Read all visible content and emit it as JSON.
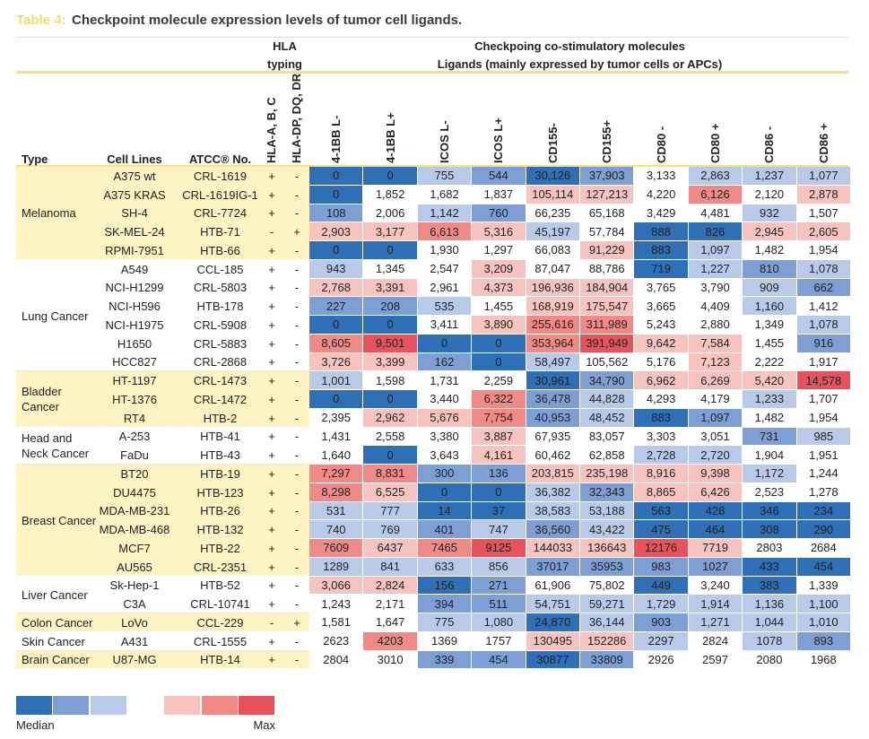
{
  "title": {
    "label": "Table 4:",
    "text": "Checkpoint molecule expression levels of tumor cell ligands."
  },
  "header": {
    "hla": [
      "HLA",
      "typing"
    ],
    "molecules": [
      "Checkpoing co-stimulatory molecules",
      "Ligands (mainly expressed by tumor cells or APCs)"
    ],
    "columns": [
      "Type",
      "Cell Lines",
      "ATCC® No.",
      "HLA-A, B, C",
      "HLA-DP, DQ, DR",
      "4-1BB L-",
      "4-1BB L+",
      "ICOS L-",
      "ICOS L+",
      "CD155-",
      "CD155+",
      "CD80 -",
      "CD80 +",
      "CD86 -",
      "CD86 +"
    ]
  },
  "groups": [
    {
      "type": "Melanoma",
      "rows": [
        {
          "line": "A375 wt",
          "atcc": "CRL-1619",
          "hla": [
            "+",
            "-"
          ],
          "values": [
            "0",
            "0",
            "755",
            "544",
            "30,126",
            "37,903",
            "3,133",
            "2,863",
            "1,237",
            "1,077"
          ],
          "levels": [
            0,
            0,
            2,
            1,
            0,
            1,
            3,
            2,
            2,
            2
          ]
        },
        {
          "line": "A375 KRAS",
          "atcc": "CRL-1619IG-1",
          "hla": [
            "+",
            "-"
          ],
          "values": [
            "0",
            "1,852",
            "1,682",
            "1,837",
            "105,114",
            "127,213",
            "4,220",
            "6,126",
            "2,120",
            "2,878"
          ],
          "levels": [
            0,
            3,
            3,
            3,
            4,
            4,
            3,
            5,
            3,
            4
          ]
        },
        {
          "line": "SH-4",
          "atcc": "CRL-7724",
          "hla": [
            "+",
            "-"
          ],
          "values": [
            "108",
            "2,006",
            "1,142",
            "760",
            "66,235",
            "65,168",
            "3,429",
            "4,481",
            "932",
            "1,507"
          ],
          "levels": [
            1,
            3,
            2,
            1,
            3,
            3,
            3,
            3,
            2,
            3
          ]
        },
        {
          "line": "SK-MEL-24",
          "atcc": "HTB-71",
          "hla": [
            "-",
            "+"
          ],
          "values": [
            "2,903",
            "3,177",
            "6,613",
            "5,316",
            "45,197",
            "57,784",
            "888",
            "826",
            "2,945",
            "2,605"
          ],
          "levels": [
            4,
            4,
            5,
            4,
            2,
            3,
            0,
            0,
            4,
            4
          ]
        },
        {
          "line": "RPMI-7951",
          "atcc": "HTB-66",
          "hla": [
            "+",
            "-"
          ],
          "values": [
            "0",
            "0",
            "1,930",
            "1,297",
            "66,083",
            "91,229",
            "883",
            "1,097",
            "1,482",
            "1,954"
          ],
          "levels": [
            0,
            0,
            3,
            3,
            3,
            4,
            0,
            2,
            3,
            3
          ]
        }
      ]
    },
    {
      "type": "Lung Cancer",
      "rows": [
        {
          "line": "A549",
          "atcc": "CCL-185",
          "hla": [
            "+",
            "-"
          ],
          "values": [
            "943",
            "1,345",
            "2,547",
            "3,209",
            "87,047",
            "88,786",
            "719",
            "1,227",
            "810",
            "1,078"
          ],
          "levels": [
            2,
            3,
            3,
            4,
            3,
            3,
            0,
            2,
            1,
            2
          ]
        },
        {
          "line": "NCI-H1299",
          "atcc": "CRL-5803",
          "hla": [
            "+",
            "-"
          ],
          "values": [
            "2,768",
            "3,391",
            "2,961",
            "4,373",
            "196,936",
            "184,904",
            "3,765",
            "3,790",
            "909",
            "662"
          ],
          "levels": [
            4,
            4,
            3,
            4,
            4,
            4,
            3,
            3,
            2,
            1
          ]
        },
        {
          "line": "NCI-H596",
          "atcc": "HTB-178",
          "hla": [
            "+",
            "-"
          ],
          "values": [
            "227",
            "208",
            "535",
            "1,455",
            "168,919",
            "175,547",
            "3,665",
            "4,409",
            "1,160",
            "1,412"
          ],
          "levels": [
            1,
            1,
            2,
            3,
            4,
            4,
            3,
            3,
            2,
            3
          ]
        },
        {
          "line": "NCI-H1975",
          "atcc": "CRL-5908",
          "hla": [
            "+",
            "-"
          ],
          "values": [
            "0",
            "0",
            "3,411",
            "3,890",
            "255,616",
            "311,989",
            "5,243",
            "2,880",
            "1,349",
            "1,078"
          ],
          "levels": [
            0,
            0,
            3,
            4,
            5,
            5,
            3,
            3,
            3,
            2
          ]
        },
        {
          "line": "H1650",
          "atcc": "CRL-5883",
          "hla": [
            "+",
            "-"
          ],
          "values": [
            "8,605",
            "9,501",
            "0",
            "0",
            "353,964",
            "391,949",
            "9,642",
            "7,584",
            "1,455",
            "916"
          ],
          "levels": [
            5,
            6,
            0,
            0,
            5,
            6,
            4,
            4,
            3,
            1
          ]
        },
        {
          "line": "HCC827",
          "atcc": "CRL-2868",
          "hla": [
            "+",
            "-"
          ],
          "values": [
            "3,726",
            "3,399",
            "162",
            "0",
            "58,497",
            "105,562",
            "5,176",
            "7,123",
            "2,222",
            "1,917"
          ],
          "levels": [
            4,
            4,
            1,
            0,
            2,
            3,
            3,
            4,
            3,
            3
          ]
        }
      ]
    },
    {
      "type": "Bladder Cancer",
      "rows": [
        {
          "line": "HT-1197",
          "atcc": "CRL-1473",
          "hla": [
            "+",
            "-"
          ],
          "values": [
            "1,001",
            "1,598",
            "1,731",
            "2,259",
            "30,961",
            "34,790",
            "6,962",
            "6,269",
            "5,420",
            "14,578"
          ],
          "levels": [
            2,
            3,
            3,
            3,
            0,
            1,
            4,
            4,
            4,
            6
          ]
        },
        {
          "line": "HT-1376",
          "atcc": "CRL-1472",
          "hla": [
            "+",
            "-"
          ],
          "values": [
            "0",
            "0",
            "3,440",
            "6,322",
            "36,478",
            "44,828",
            "4,293",
            "4,179",
            "1,233",
            "1,707"
          ],
          "levels": [
            0,
            0,
            3,
            5,
            1,
            2,
            3,
            3,
            2,
            3
          ]
        },
        {
          "line": "RT4",
          "atcc": "HTB-2",
          "hla": [
            "+",
            "-"
          ],
          "values": [
            "2,395",
            "2,962",
            "5,676",
            "7,754",
            "40,953",
            "48,452",
            "883",
            "1,097",
            "1,482",
            "1,954"
          ],
          "levels": [
            3,
            4,
            4,
            5,
            1,
            2,
            0,
            1,
            3,
            3
          ]
        }
      ]
    },
    {
      "type": "Head and Neck Cancer",
      "rows": [
        {
          "line": "A-253",
          "atcc": "HTB-41",
          "hla": [
            "+",
            "-"
          ],
          "values": [
            "1,431",
            "2,558",
            "3,380",
            "3,887",
            "67,935",
            "83,057",
            "3,303",
            "3,051",
            "731",
            "985"
          ],
          "levels": [
            3,
            3,
            3,
            4,
            3,
            3,
            3,
            3,
            1,
            2
          ]
        },
        {
          "line": "FaDu",
          "atcc": "HTB-43",
          "hla": [
            "+",
            "-"
          ],
          "values": [
            "1,640",
            "0",
            "3,643",
            "4,161",
            "60,462",
            "62,858",
            "2,728",
            "2,720",
            "1,904",
            "1,951"
          ],
          "levels": [
            3,
            0,
            3,
            4,
            3,
            3,
            2,
            2,
            3,
            3
          ]
        }
      ]
    },
    {
      "type": "Breast Cancer",
      "rows": [
        {
          "line": "BT20",
          "atcc": "HTB-19",
          "hla": [
            "+",
            "-"
          ],
          "values": [
            "7,297",
            "8,831",
            "300",
            "136",
            "203,815",
            "235,198",
            "8,916",
            "9,398",
            "1,172",
            "1,244"
          ],
          "levels": [
            5,
            5,
            1,
            1,
            4,
            4,
            4,
            4,
            2,
            3
          ]
        },
        {
          "line": "DU4475",
          "atcc": "HTB-123",
          "hla": [
            "+",
            "-"
          ],
          "values": [
            "8,298",
            "6,525",
            "0",
            "0",
            "36,382",
            "32,343",
            "8,865",
            "6,426",
            "2,523",
            "1,278"
          ],
          "levels": [
            5,
            4,
            0,
            0,
            2,
            1,
            4,
            4,
            3,
            3
          ]
        },
        {
          "line": "MDA-MB-231",
          "atcc": "HTB-26",
          "hla": [
            "+",
            "-"
          ],
          "values": [
            "531",
            "777",
            "14",
            "37",
            "38,583",
            "53,188",
            "563",
            "428",
            "346",
            "234"
          ],
          "levels": [
            2,
            2,
            0,
            0,
            2,
            2,
            0,
            0,
            0,
            0
          ]
        },
        {
          "line": "MDA-MB-468",
          "atcc": "HTB-132",
          "hla": [
            "+",
            "-"
          ],
          "values": [
            "740",
            "769",
            "401",
            "747",
            "36,560",
            "43,422",
            "475",
            "464",
            "308",
            "290"
          ],
          "levels": [
            2,
            2,
            1,
            2,
            1,
            2,
            0,
            0,
            0,
            0
          ]
        },
        {
          "line": "MCF7",
          "atcc": "HTB-22",
          "hla": [
            "+",
            "-"
          ],
          "values": [
            "7609",
            "6437",
            "7465",
            "9125",
            "144033",
            "136643",
            "12176",
            "7719",
            "2803",
            "2684"
          ],
          "levels": [
            5,
            4,
            5,
            6,
            4,
            4,
            6,
            4,
            3,
            3
          ]
        },
        {
          "line": "AU565",
          "atcc": "CRL-2351",
          "hla": [
            "+",
            "-"
          ],
          "values": [
            "1289",
            "841",
            "633",
            "856",
            "37017",
            "35953",
            "983",
            "1027",
            "433",
            "454"
          ],
          "levels": [
            2,
            2,
            2,
            2,
            1,
            1,
            1,
            1,
            0,
            0
          ]
        }
      ]
    },
    {
      "type": "Liver Cancer",
      "rows": [
        {
          "line": "Sk-Hep-1",
          "atcc": "HTB-52",
          "hla": [
            "+",
            "-"
          ],
          "values": [
            "3,066",
            "2,824",
            "156",
            "271",
            "61,906",
            "75,802",
            "449",
            "3,240",
            "383",
            "1,339"
          ],
          "levels": [
            4,
            4,
            0,
            1,
            3,
            3,
            0,
            3,
            0,
            3
          ]
        },
        {
          "line": "C3A",
          "atcc": "CRL-10741",
          "hla": [
            "+",
            "-"
          ],
          "values": [
            "1,243",
            "2,171",
            "394",
            "511",
            "54,751",
            "59,271",
            "1,729",
            "1,914",
            "1,136",
            "1,100"
          ],
          "levels": [
            3,
            3,
            1,
            1,
            2,
            2,
            2,
            2,
            2,
            2
          ]
        }
      ]
    },
    {
      "type": "Colon Cancer",
      "rows": [
        {
          "line": "LoVo",
          "atcc": "CCL-229",
          "hla": [
            "-",
            "+"
          ],
          "values": [
            "1,581",
            "1,647",
            "775",
            "1,080",
            "24,870",
            "36,144",
            "903",
            "1,271",
            "1,044",
            "1,010"
          ],
          "levels": [
            3,
            3,
            2,
            2,
            0,
            2,
            1,
            2,
            2,
            2
          ]
        }
      ]
    },
    {
      "type": "Skin Cancer",
      "rows": [
        {
          "line": "A431",
          "atcc": "CRL-1555",
          "hla": [
            "+",
            "-"
          ],
          "values": [
            "2623",
            "4203",
            "1369",
            "1757",
            "130495",
            "152286",
            "2297",
            "2824",
            "1078",
            "893"
          ],
          "levels": [
            3,
            5,
            3,
            3,
            4,
            4,
            2,
            3,
            2,
            1
          ]
        }
      ]
    },
    {
      "type": "Brain Cancer",
      "rows": [
        {
          "line": "U87-MG",
          "atcc": "HTB-14",
          "hla": [
            "+",
            "-"
          ],
          "values": [
            "2804",
            "3010",
            "339",
            "454",
            "30877",
            "33809",
            "2926",
            "2597",
            "2080",
            "1968"
          ],
          "levels": [
            3,
            3,
            1,
            1,
            0,
            1,
            3,
            3,
            3,
            3
          ]
        }
      ]
    }
  ],
  "legend": {
    "colors": [
      "#2f6fb6",
      "#7d9fd3",
      "#b9cae9",
      "#ffffff",
      "#f7c3bf",
      "#f08a86",
      "#e8535b"
    ],
    "labels": [
      "Median",
      "Max"
    ]
  }
}
